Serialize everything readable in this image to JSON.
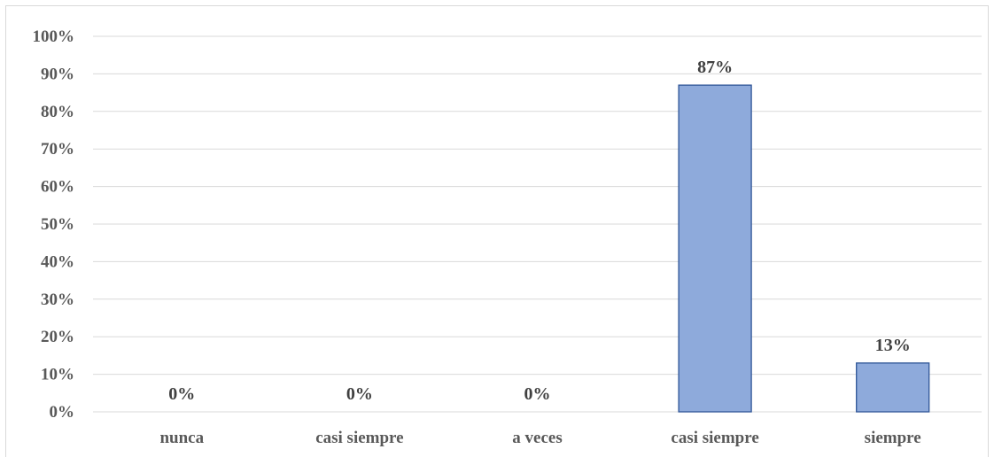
{
  "chart_data": {
    "type": "bar",
    "categories": [
      "nunca",
      "casi siempre",
      "a veces",
      "casi siempre",
      "siempre"
    ],
    "values": [
      0,
      0,
      0,
      87,
      13
    ],
    "data_labels": [
      "0%",
      "0%",
      "0%",
      "87%",
      "13%"
    ],
    "y_ticks": [
      "0%",
      "10%",
      "20%",
      "30%",
      "40%",
      "50%",
      "60%",
      "70%",
      "80%",
      "90%",
      "100%"
    ],
    "ylim": [
      0,
      100
    ],
    "grid": true,
    "bar_color": "#8eaadb",
    "bar_border_color": "#2f5597",
    "grid_color": "#d9d9d9"
  }
}
